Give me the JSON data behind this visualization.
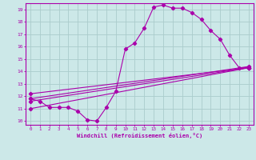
{
  "xlabel": "Windchill (Refroidissement éolien,°C)",
  "background_color": "#cce8e8",
  "grid_color": "#aacccc",
  "line_color": "#aa00aa",
  "xlim": [
    -0.5,
    23.5
  ],
  "ylim": [
    9.7,
    19.5
  ],
  "xticks": [
    0,
    1,
    2,
    3,
    4,
    5,
    6,
    7,
    8,
    9,
    10,
    11,
    12,
    13,
    14,
    15,
    16,
    17,
    18,
    19,
    20,
    21,
    22,
    23
  ],
  "yticks": [
    10,
    11,
    12,
    13,
    14,
    15,
    16,
    17,
    18,
    19
  ],
  "line1_x": [
    0,
    1,
    2,
    3,
    4,
    5,
    6,
    7,
    8,
    9,
    10,
    11,
    12,
    13,
    14,
    15,
    16,
    17,
    18,
    19,
    20,
    21,
    22,
    23
  ],
  "line1_y": [
    11.8,
    11.6,
    11.1,
    11.1,
    11.1,
    10.8,
    10.1,
    10.0,
    11.1,
    12.4,
    15.8,
    16.3,
    17.5,
    19.2,
    19.35,
    19.1,
    19.1,
    18.75,
    18.2,
    17.3,
    16.6,
    15.3,
    14.3,
    14.3
  ],
  "line2_x": [
    0,
    23
  ],
  "line2_y": [
    11.8,
    14.4
  ],
  "line3_x": [
    0,
    23
  ],
  "line3_y": [
    11.6,
    14.3
  ],
  "line4_x": [
    0,
    23
  ],
  "line4_y": [
    11.0,
    14.3
  ],
  "line5_x": [
    0,
    23
  ],
  "line5_y": [
    12.2,
    14.3
  ]
}
